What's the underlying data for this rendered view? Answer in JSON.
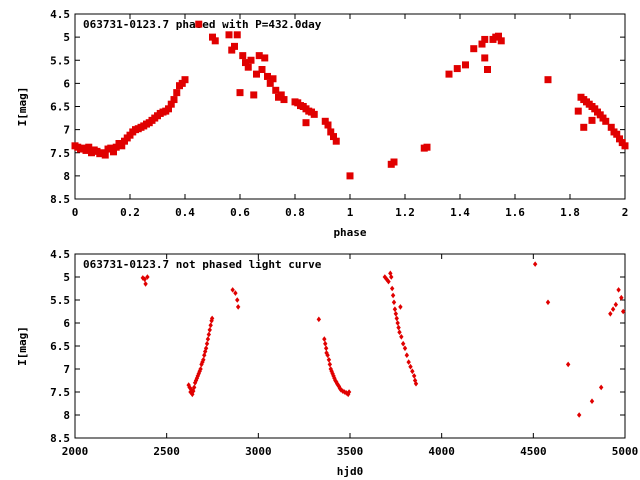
{
  "chart_data": [
    {
      "type": "scatter",
      "title": "063731-0123.7 phased with P=432.0day",
      "xlabel": "phase",
      "ylabel": "I[mag]",
      "xlim": [
        0,
        2
      ],
      "ylim": [
        4.5,
        8.5
      ],
      "y_inverted": true,
      "x_ticks": [
        "0",
        "0.2",
        "0.4",
        "0.6",
        "0.8",
        "1",
        "1.2",
        "1.4",
        "1.6",
        "1.8",
        "2"
      ],
      "x_tick_values": [
        0,
        0.2,
        0.4,
        0.6,
        0.8,
        1.0,
        1.2,
        1.4,
        1.6,
        1.8,
        2.0
      ],
      "y_ticks": [
        "4.5",
        "5",
        "5.5",
        "6",
        "6.5",
        "7",
        "7.5",
        "8",
        "8.5"
      ],
      "y_tick_values": [
        4.5,
        5,
        5.5,
        6,
        6.5,
        7,
        7.5,
        8,
        8.5
      ],
      "marker_color": "#e00000",
      "marker": "filled square",
      "grid": false,
      "points": [
        [
          0.0,
          7.35
        ],
        [
          0.01,
          7.38
        ],
        [
          0.02,
          7.42
        ],
        [
          0.03,
          7.4
        ],
        [
          0.04,
          7.45
        ],
        [
          0.05,
          7.38
        ],
        [
          0.06,
          7.5
        ],
        [
          0.07,
          7.44
        ],
        [
          0.08,
          7.47
        ],
        [
          0.09,
          7.52
        ],
        [
          0.1,
          7.5
        ],
        [
          0.11,
          7.55
        ],
        [
          0.12,
          7.42
        ],
        [
          0.13,
          7.4
        ],
        [
          0.14,
          7.48
        ],
        [
          0.15,
          7.38
        ],
        [
          0.16,
          7.3
        ],
        [
          0.17,
          7.35
        ],
        [
          0.18,
          7.25
        ],
        [
          0.19,
          7.18
        ],
        [
          0.2,
          7.12
        ],
        [
          0.21,
          7.05
        ],
        [
          0.22,
          7.0
        ],
        [
          0.23,
          6.98
        ],
        [
          0.24,
          6.95
        ],
        [
          0.25,
          6.92
        ],
        [
          0.26,
          6.88
        ],
        [
          0.27,
          6.85
        ],
        [
          0.28,
          6.8
        ],
        [
          0.29,
          6.75
        ],
        [
          0.3,
          6.7
        ],
        [
          0.31,
          6.65
        ],
        [
          0.32,
          6.62
        ],
        [
          0.33,
          6.6
        ],
        [
          0.34,
          6.55
        ],
        [
          0.35,
          6.45
        ],
        [
          0.36,
          6.35
        ],
        [
          0.37,
          6.2
        ],
        [
          0.38,
          6.05
        ],
        [
          0.39,
          6.0
        ],
        [
          0.4,
          5.92
        ],
        [
          0.45,
          4.72
        ],
        [
          0.5,
          5.0
        ],
        [
          0.51,
          5.08
        ],
        [
          0.56,
          4.95
        ],
        [
          0.57,
          5.28
        ],
        [
          0.58,
          5.2
        ],
        [
          0.59,
          4.95
        ],
        [
          0.6,
          6.2
        ],
        [
          0.61,
          5.4
        ],
        [
          0.62,
          5.55
        ],
        [
          0.63,
          5.65
        ],
        [
          0.64,
          5.5
        ],
        [
          0.65,
          6.25
        ],
        [
          0.66,
          5.8
        ],
        [
          0.67,
          5.4
        ],
        [
          0.68,
          5.7
        ],
        [
          0.69,
          5.45
        ],
        [
          0.7,
          5.85
        ],
        [
          0.71,
          6.0
        ],
        [
          0.72,
          5.9
        ],
        [
          0.73,
          6.15
        ],
        [
          0.74,
          6.3
        ],
        [
          0.75,
          6.25
        ],
        [
          0.76,
          6.35
        ],
        [
          0.8,
          6.4
        ],
        [
          0.81,
          6.42
        ],
        [
          0.82,
          6.48
        ],
        [
          0.83,
          6.5
        ],
        [
          0.84,
          6.55
        ],
        [
          0.85,
          6.6
        ],
        [
          0.86,
          6.62
        ],
        [
          0.87,
          6.67
        ],
        [
          0.84,
          6.85
        ],
        [
          0.91,
          6.82
        ],
        [
          0.92,
          6.9
        ],
        [
          0.93,
          7.05
        ],
        [
          0.94,
          7.15
        ],
        [
          0.95,
          7.25
        ],
        [
          1.0,
          8.0
        ],
        [
          1.15,
          7.75
        ],
        [
          1.16,
          7.7
        ],
        [
          1.27,
          7.4
        ],
        [
          1.28,
          7.38
        ],
        [
          1.36,
          5.8
        ],
        [
          1.39,
          5.68
        ],
        [
          1.42,
          5.6
        ],
        [
          1.45,
          5.25
        ],
        [
          1.48,
          5.15
        ],
        [
          1.49,
          5.05
        ],
        [
          1.49,
          5.45
        ],
        [
          1.5,
          5.7
        ],
        [
          1.52,
          5.05
        ],
        [
          1.53,
          5.0
        ],
        [
          1.54,
          4.98
        ],
        [
          1.55,
          5.08
        ],
        [
          1.72,
          5.92
        ],
        [
          1.83,
          6.6
        ],
        [
          1.84,
          6.3
        ],
        [
          1.85,
          6.35
        ],
        [
          1.86,
          6.4
        ],
        [
          1.87,
          6.45
        ],
        [
          1.88,
          6.5
        ],
        [
          1.89,
          6.55
        ],
        [
          1.9,
          6.62
        ],
        [
          1.91,
          6.68
        ],
        [
          1.92,
          6.75
        ],
        [
          1.93,
          6.82
        ],
        [
          1.95,
          6.95
        ],
        [
          1.96,
          7.05
        ],
        [
          1.97,
          7.1
        ],
        [
          1.98,
          7.2
        ],
        [
          1.99,
          7.28
        ],
        [
          2.0,
          7.35
        ],
        [
          1.85,
          6.95
        ],
        [
          1.88,
          6.8
        ]
      ]
    },
    {
      "type": "scatter",
      "title": "063731-0123.7 not phased light curve",
      "xlabel": "hjd0",
      "ylabel": "I[mag]",
      "xlim": [
        2000,
        5000
      ],
      "ylim": [
        4.5,
        8.5
      ],
      "y_inverted": true,
      "x_ticks": [
        "2000",
        "2500",
        "3000",
        "3500",
        "4000",
        "4500",
        "5000"
      ],
      "x_tick_values": [
        2000,
        2500,
        3000,
        3500,
        4000,
        4500,
        5000
      ],
      "y_ticks": [
        "4.5",
        "5",
        "5.5",
        "6",
        "6.5",
        "7",
        "7.5",
        "8",
        "8.5"
      ],
      "y_tick_values": [
        4.5,
        5,
        5.5,
        6,
        6.5,
        7,
        7.5,
        8,
        8.5
      ],
      "marker_color": "#e00000",
      "marker": "small diamond",
      "grid": false,
      "points": [
        [
          2370,
          5.02
        ],
        [
          2380,
          5.05
        ],
        [
          2385,
          5.15
        ],
        [
          2395,
          5.0
        ],
        [
          2620,
          7.35
        ],
        [
          2625,
          7.4
        ],
        [
          2630,
          7.5
        ],
        [
          2635,
          7.45
        ],
        [
          2640,
          7.55
        ],
        [
          2645,
          7.48
        ],
        [
          2650,
          7.4
        ],
        [
          2655,
          7.3
        ],
        [
          2660,
          7.25
        ],
        [
          2665,
          7.2
        ],
        [
          2670,
          7.15
        ],
        [
          2675,
          7.1
        ],
        [
          2680,
          7.05
        ],
        [
          2685,
          7.0
        ],
        [
          2690,
          6.9
        ],
        [
          2695,
          6.85
        ],
        [
          2700,
          6.8
        ],
        [
          2705,
          6.7
        ],
        [
          2710,
          6.62
        ],
        [
          2715,
          6.55
        ],
        [
          2720,
          6.45
        ],
        [
          2725,
          6.35
        ],
        [
          2730,
          6.25
        ],
        [
          2735,
          6.15
        ],
        [
          2740,
          6.05
        ],
        [
          2745,
          5.95
        ],
        [
          2748,
          5.9
        ],
        [
          2860,
          5.28
        ],
        [
          2875,
          5.35
        ],
        [
          2885,
          5.5
        ],
        [
          2890,
          5.65
        ],
        [
          3330,
          5.92
        ],
        [
          3360,
          6.35
        ],
        [
          3365,
          6.45
        ],
        [
          3370,
          6.55
        ],
        [
          3372,
          6.65
        ],
        [
          3378,
          6.7
        ],
        [
          3385,
          6.8
        ],
        [
          3390,
          6.9
        ],
        [
          3395,
          7.0
        ],
        [
          3400,
          7.05
        ],
        [
          3405,
          7.1
        ],
        [
          3410,
          7.15
        ],
        [
          3415,
          7.2
        ],
        [
          3420,
          7.25
        ],
        [
          3425,
          7.28
        ],
        [
          3430,
          7.32
        ],
        [
          3435,
          7.35
        ],
        [
          3440,
          7.38
        ],
        [
          3445,
          7.42
        ],
        [
          3450,
          7.45
        ],
        [
          3460,
          7.48
        ],
        [
          3470,
          7.5
        ],
        [
          3480,
          7.52
        ],
        [
          3490,
          7.55
        ],
        [
          3495,
          7.5
        ],
        [
          3690,
          5.0
        ],
        [
          3700,
          5.05
        ],
        [
          3710,
          5.1
        ],
        [
          3720,
          4.92
        ],
        [
          3725,
          5.0
        ],
        [
          3730,
          5.25
        ],
        [
          3735,
          5.4
        ],
        [
          3740,
          5.55
        ],
        [
          3745,
          5.7
        ],
        [
          3750,
          5.8
        ],
        [
          3755,
          5.9
        ],
        [
          3760,
          6.0
        ],
        [
          3765,
          6.1
        ],
        [
          3770,
          6.2
        ],
        [
          3775,
          5.65
        ],
        [
          3780,
          6.3
        ],
        [
          3790,
          6.45
        ],
        [
          3800,
          6.55
        ],
        [
          3810,
          6.7
        ],
        [
          3820,
          6.85
        ],
        [
          3830,
          6.95
        ],
        [
          3840,
          7.05
        ],
        [
          3850,
          7.15
        ],
        [
          3855,
          7.25
        ],
        [
          3860,
          7.32
        ],
        [
          4510,
          4.72
        ],
        [
          4580,
          5.55
        ],
        [
          4690,
          6.9
        ],
        [
          4750,
          8.0
        ],
        [
          4820,
          7.7
        ],
        [
          4870,
          7.4
        ],
        [
          4920,
          5.8
        ],
        [
          4935,
          5.7
        ],
        [
          4950,
          5.6
        ],
        [
          4965,
          5.28
        ],
        [
          4980,
          5.45
        ],
        [
          4990,
          5.75
        ]
      ]
    }
  ]
}
